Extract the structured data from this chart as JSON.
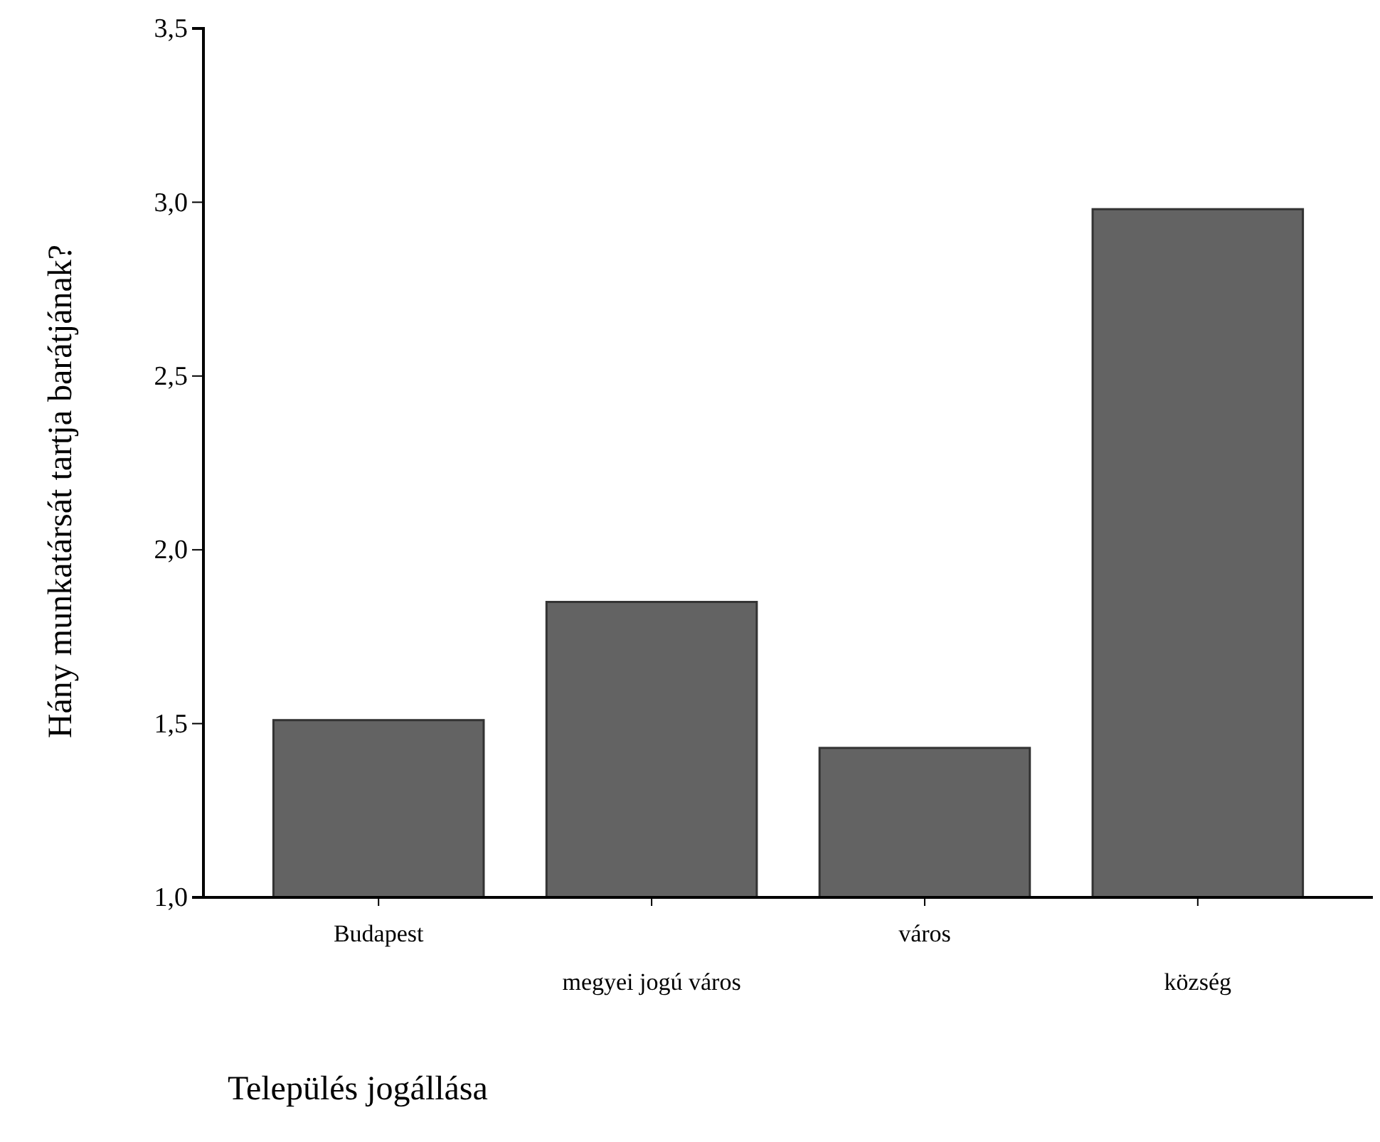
{
  "chart_data": {
    "type": "bar",
    "categories": [
      "Budapest",
      "megyei jogú város",
      "város",
      "község"
    ],
    "values": [
      1.51,
      1.85,
      1.43,
      2.98
    ],
    "color": "#636363",
    "xlabel": "Település jogállása",
    "ylabel": "Hány munkatársát tartja barátjának?",
    "ylim": [
      1.0,
      3.5
    ],
    "yticks": [
      {
        "value": 1.0,
        "label": "1,0"
      },
      {
        "value": 1.5,
        "label": "1,5"
      },
      {
        "value": 2.0,
        "label": "2,0"
      },
      {
        "value": 2.5,
        "label": "2,5"
      },
      {
        "value": 3.0,
        "label": "3,0"
      },
      {
        "value": 3.5,
        "label": "3,5"
      }
    ],
    "grid": false
  }
}
